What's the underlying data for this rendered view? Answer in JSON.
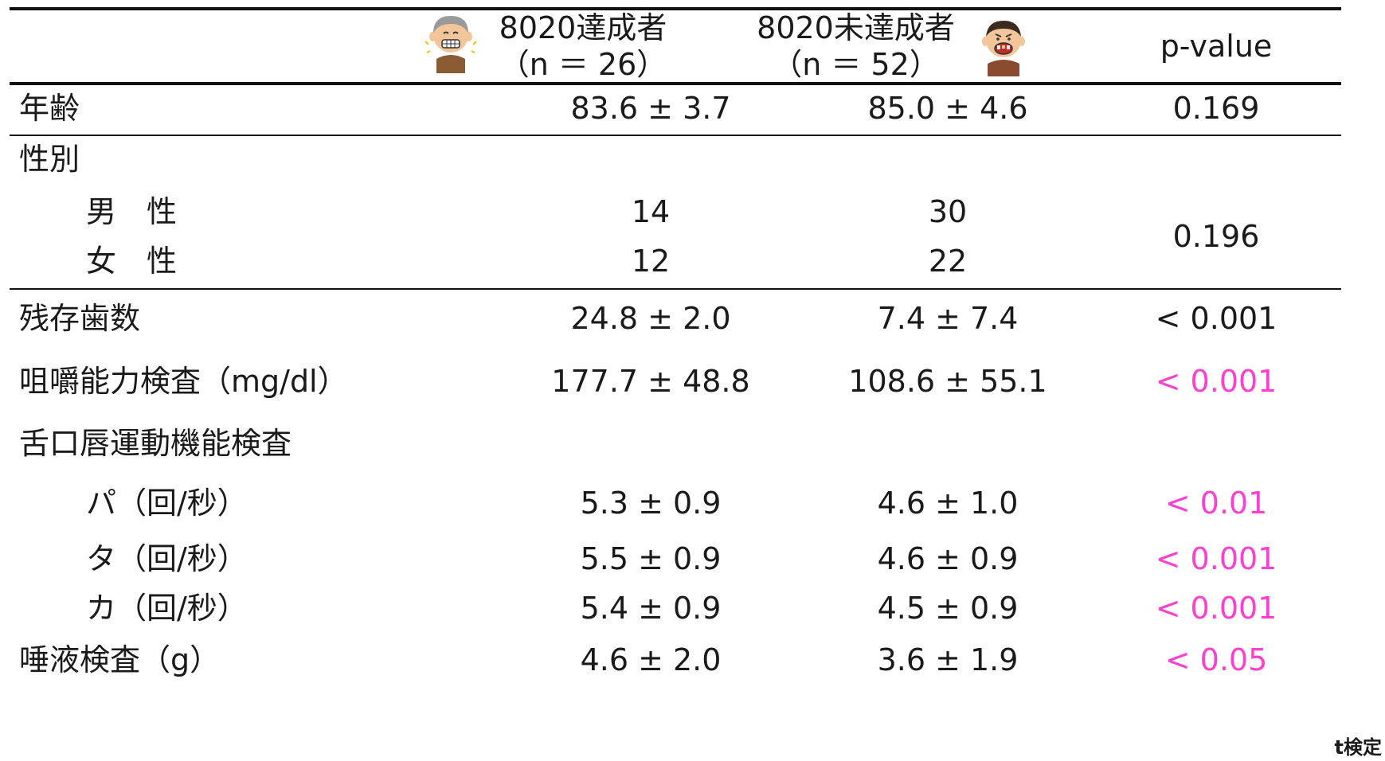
{
  "header": {
    "group1_label": "8020達成者",
    "group1_n": "（n ＝ 26）",
    "group2_label": "8020未達成者",
    "group2_n": "（n ＝ 52）",
    "pvalue_label": "p-value"
  },
  "rows": {
    "age": {
      "label": "年齢",
      "g1": "83.6 ± 3.7",
      "g2": "85.0 ± 4.6",
      "p": "0.169"
    },
    "sex": {
      "label": "性別",
      "p": "0.196"
    },
    "male": {
      "label": "男　性",
      "g1": "14",
      "g2": "30"
    },
    "female": {
      "label": "女　性",
      "g1": "12",
      "g2": "22"
    },
    "teeth": {
      "label": "残存歯数",
      "g1": "24.8 ± 2.0",
      "g2": "7.4 ± 7.4",
      "p": "< 0.001"
    },
    "chewing": {
      "label": "咀嚼能力検査（mg/dl）",
      "g1": "177.7 ± 48.8",
      "g2": "108.6 ± 55.1",
      "p": "< 0.001"
    },
    "oral": {
      "label": "舌口唇運動機能検査"
    },
    "pa": {
      "label": "パ（回/秒）",
      "g1": "5.3 ± 0.9",
      "g2": "4.6 ± 1.0",
      "p": "< 0.01"
    },
    "ta": {
      "label": "タ（回/秒）",
      "g1": "5.5 ± 0.9",
      "g2": "4.6 ± 0.9",
      "p": "< 0.001"
    },
    "ka": {
      "label": "カ（回/秒）",
      "g1": "5.4 ± 0.9",
      "g2": "4.5 ± 0.9",
      "p": "< 0.001"
    },
    "saliva": {
      "label": "唾液検査（g）",
      "g1": "4.6 ± 2.0",
      "g2": "3.6 ± 1.9",
      "p": "< 0.05"
    }
  },
  "footnote": "t検定",
  "colors": {
    "significant": "#ff3fd0",
    "text": "#1a1a1a",
    "rule": "#111111"
  },
  "icons": {
    "group1": "smiling-elderly-man-icon",
    "group2": "worried-man-bad-teeth-icon"
  }
}
